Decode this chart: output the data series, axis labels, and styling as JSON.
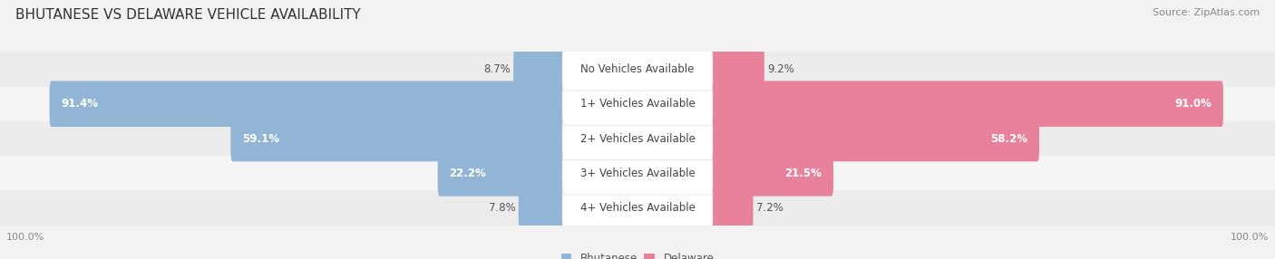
{
  "title": "BHUTANESE VS DELAWARE VEHICLE AVAILABILITY",
  "source": "Source: ZipAtlas.com",
  "categories": [
    "No Vehicles Available",
    "1+ Vehicles Available",
    "2+ Vehicles Available",
    "3+ Vehicles Available",
    "4+ Vehicles Available"
  ],
  "bhutanese_values": [
    8.7,
    91.4,
    59.1,
    22.2,
    7.8
  ],
  "delaware_values": [
    9.2,
    91.0,
    58.2,
    21.5,
    7.2
  ],
  "bhutanese_color": "#93b5d5",
  "delaware_color": "#e8829a",
  "bg_color": "#f2f2f2",
  "row_colors": [
    "#ececec",
    "#f5f5f5"
  ],
  "max_value": 100.0,
  "label_fontsize": 8.5,
  "title_fontsize": 11,
  "source_fontsize": 8,
  "tick_fontsize": 8
}
